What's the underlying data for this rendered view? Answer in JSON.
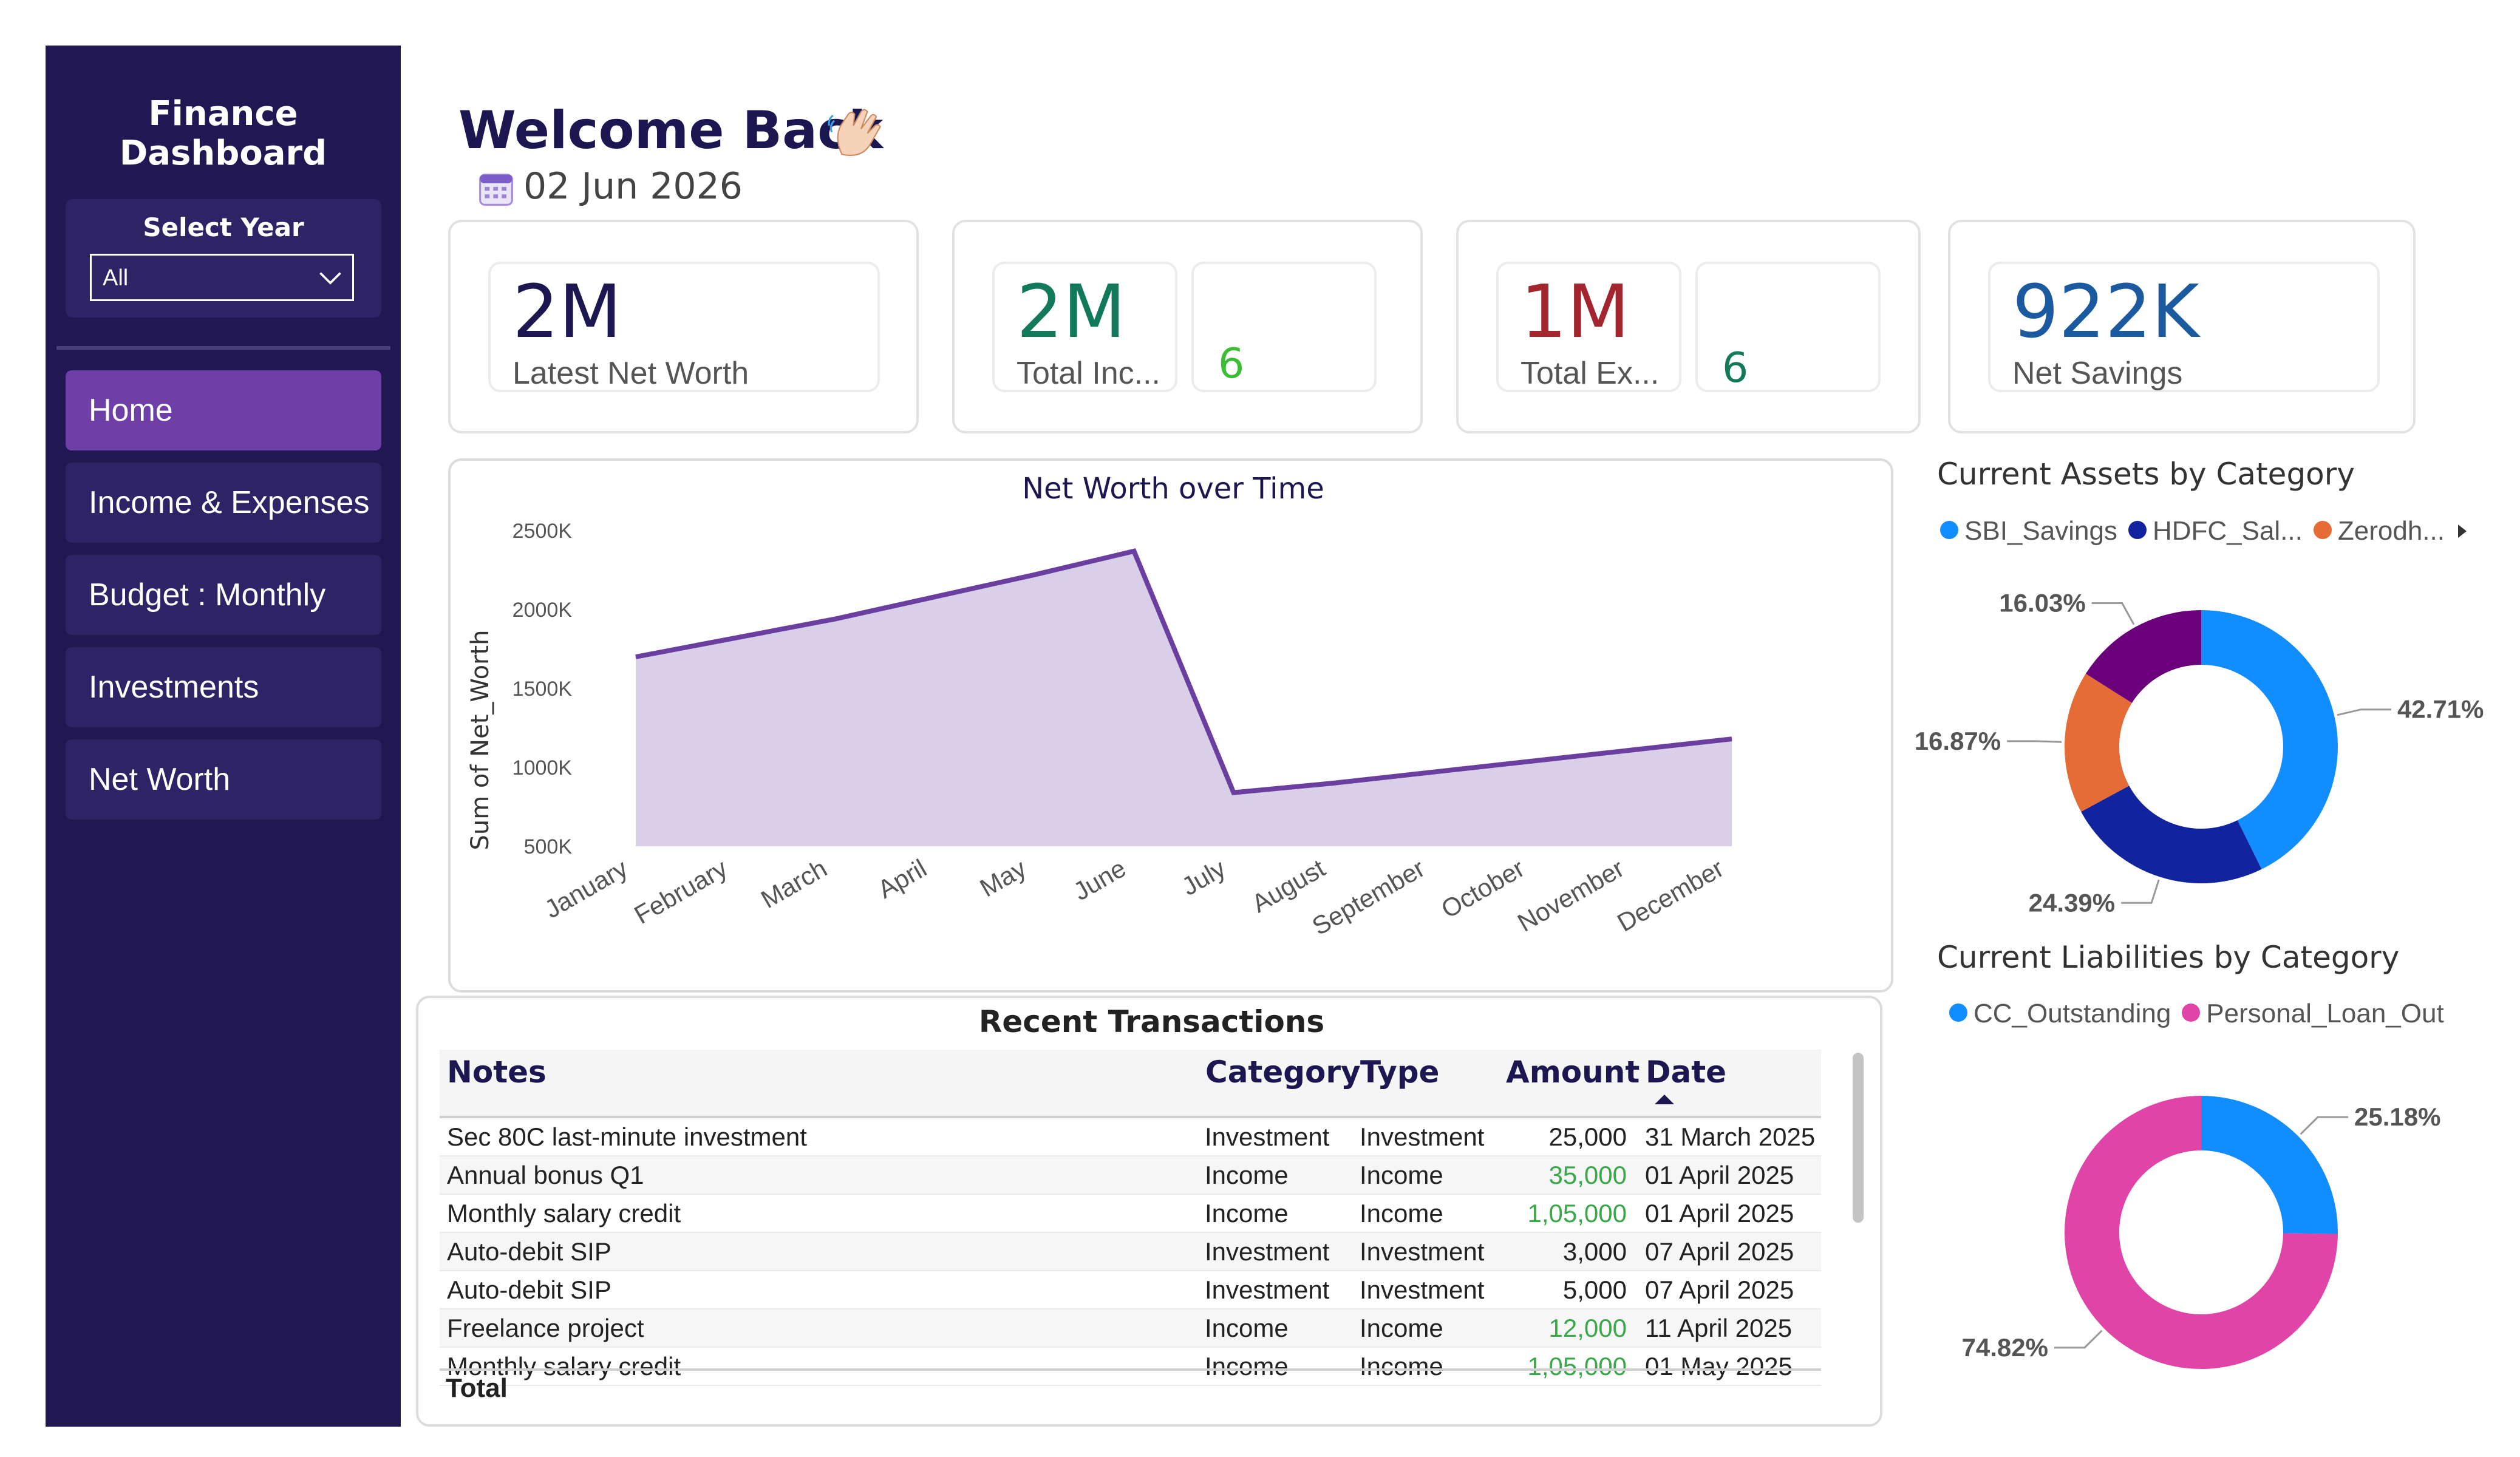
{
  "sidebar": {
    "title": "Finance Dashboard",
    "slicer_label": "Select Year",
    "slicer_value": "All",
    "nav": [
      {
        "label": "Home",
        "active": true
      },
      {
        "label": "Income & Expenses"
      },
      {
        "label": "Budget : Monthly"
      },
      {
        "label": "Investments"
      },
      {
        "label": "Net Worth"
      }
    ]
  },
  "header": {
    "welcome": "Welcome Back",
    "date": "02 Jun 2026"
  },
  "kpis": {
    "net_worth": {
      "value": "2M",
      "label": "Latest Net Worth",
      "color": "#1c1651"
    },
    "income": {
      "value": "2M",
      "label": "Total Inc...",
      "count": "6",
      "color": "#127a5a",
      "count_color": "#3bbd34"
    },
    "expense": {
      "value": "1M",
      "label": "Total Ex...",
      "count": "6",
      "color": "#a3262f",
      "count_color": "#127a5a"
    },
    "savings": {
      "value": "922K",
      "label": "Net Savings",
      "color": "#1b5a9e"
    }
  },
  "net_worth_chart": {
    "chart_data": {
      "type": "area",
      "title": "Net Worth over Time",
      "ylabel": "Sum of Net_Worth",
      "categories": [
        "January",
        "February",
        "March",
        "April",
        "May",
        "June",
        "July",
        "August",
        "September",
        "October",
        "November",
        "December"
      ],
      "values": [
        1700,
        1820,
        1940,
        2080,
        2220,
        2370,
        840,
        900,
        970,
        1040,
        1110,
        1180
      ],
      "ylim": [
        500,
        2500
      ],
      "yticks": [
        "500K",
        "1000K",
        "1500K",
        "2000K",
        "2500K"
      ],
      "line_color": "#6b3fa0",
      "fill_color": "#d9cfe8"
    }
  },
  "transactions": {
    "title": "Recent Transactions",
    "headers": [
      "Notes",
      "Category",
      "Type",
      "Amount",
      "Date"
    ],
    "rows": [
      [
        "Sec 80C last-minute investment",
        "Investment",
        "Investment",
        "25,000",
        "31 March 2025"
      ],
      [
        "Annual bonus Q1",
        "Income",
        "Income",
        "35,000",
        "01 April 2025"
      ],
      [
        "Monthly salary credit",
        "Income",
        "Income",
        "1,05,000",
        "01 April 2025"
      ],
      [
        "Auto-debit SIP",
        "Investment",
        "Investment",
        "3,000",
        "07 April 2025"
      ],
      [
        "Auto-debit SIP",
        "Investment",
        "Investment",
        "5,000",
        "07 April 2025"
      ],
      [
        "Freelance project",
        "Income",
        "Income",
        "12,000",
        "11 April 2025"
      ],
      [
        "Monthly salary credit",
        "Income",
        "Income",
        "1,05,000",
        "01 May 2025"
      ]
    ],
    "total_label": "Total",
    "income_amount_color": "#3aa84a"
  },
  "assets": {
    "title": "Current Assets by Category",
    "legend": [
      {
        "label": "SBI_Savings",
        "color": "#118dff"
      },
      {
        "label": "HDFC_Sal...",
        "color": "#12239e"
      },
      {
        "label": "Zerodh...",
        "color": "#e66c37"
      }
    ],
    "chart_data": {
      "type": "pie",
      "labels": [
        "SBI_Savings",
        "HDFC_Sal...",
        "Zerodh...",
        ""
      ],
      "values": [
        42.71,
        24.39,
        16.87,
        16.03
      ],
      "pct_labels": [
        "42.71%",
        "24.39%",
        "16.87%",
        "16.03%"
      ],
      "colors": [
        "#118dff",
        "#12239e",
        "#e66c37",
        "#6b007b"
      ]
    }
  },
  "liabilities": {
    "title": "Current Liabilities by Category",
    "legend": [
      {
        "label": "CC_Outstanding",
        "color": "#118dff"
      },
      {
        "label": "Personal_Loan_Out",
        "color": "#e044a7"
      }
    ],
    "chart_data": {
      "type": "pie",
      "labels": [
        "CC_Outstanding",
        "Personal_Loan_Out"
      ],
      "values": [
        25.18,
        74.82
      ],
      "pct_labels": [
        "25.18%",
        "74.82%"
      ],
      "colors": [
        "#118dff",
        "#e044a7"
      ]
    }
  }
}
